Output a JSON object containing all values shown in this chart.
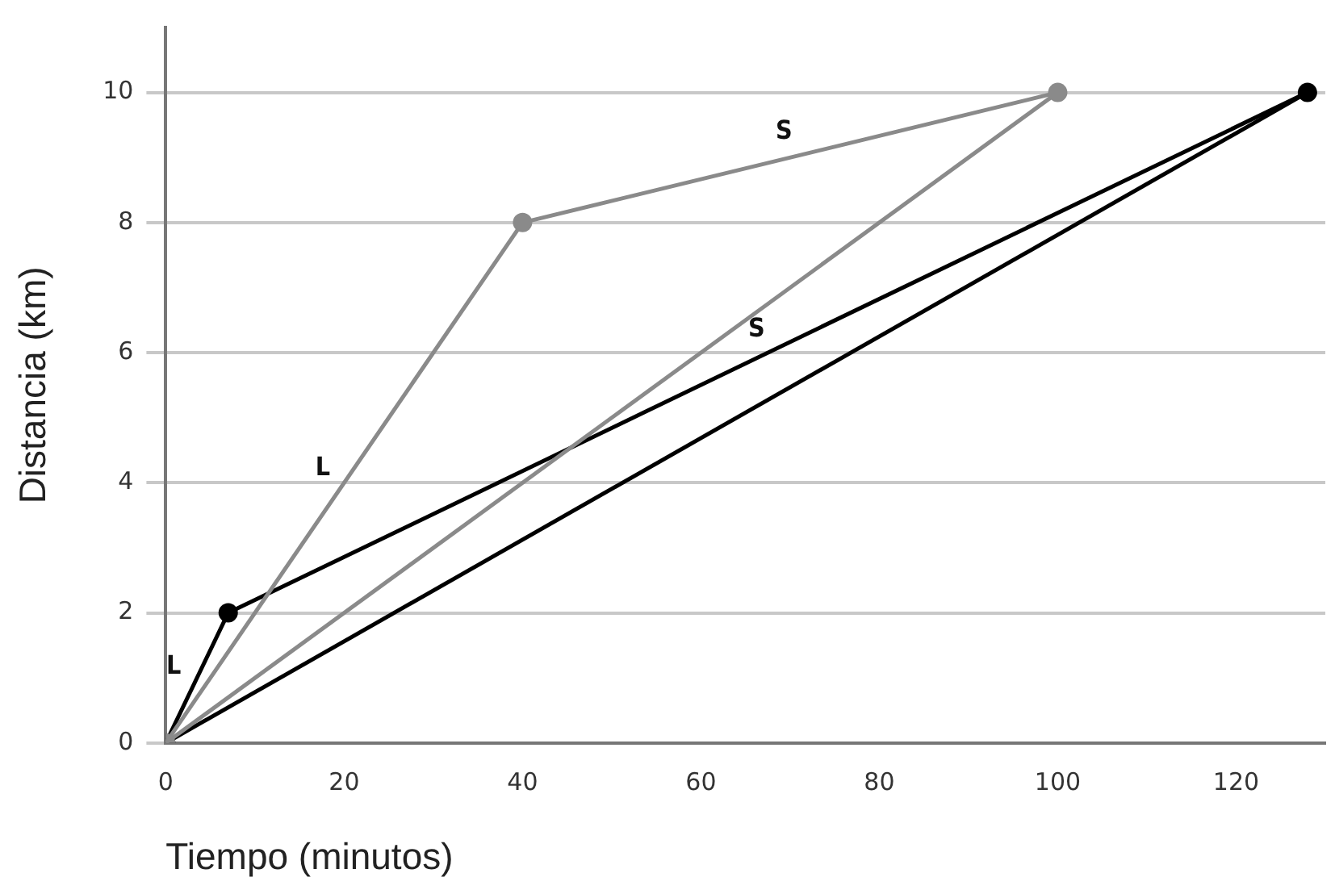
{
  "chart_data": {
    "type": "line",
    "xlabel": "Tiempo (minutos)",
    "ylabel": "Distancia (km)",
    "xlim": [
      0,
      130
    ],
    "xticks": [
      0,
      20,
      40,
      60,
      80,
      100,
      120
    ],
    "ylim": [
      0,
      11
    ],
    "yticks": [
      0,
      2,
      4,
      6,
      8,
      10
    ],
    "grid": "y",
    "series": [
      {
        "color": "#8a8a8a",
        "x": [
          0,
          40,
          100
        ],
        "values": [
          0,
          8,
          10
        ],
        "marker": "circle"
      },
      {
        "color": "#8a8a8a",
        "x": [
          0,
          100
        ],
        "values": [
          0,
          10
        ],
        "marker": "none"
      },
      {
        "color": "#000000",
        "x": [
          0,
          7,
          128
        ],
        "values": [
          0,
          2,
          10
        ],
        "marker": "circle"
      },
      {
        "color": "#000000",
        "x": [
          0,
          128
        ],
        "values": [
          0,
          10
        ],
        "marker": "none"
      }
    ],
    "annotations": [
      "L",
      "S",
      "L",
      "S"
    ]
  }
}
